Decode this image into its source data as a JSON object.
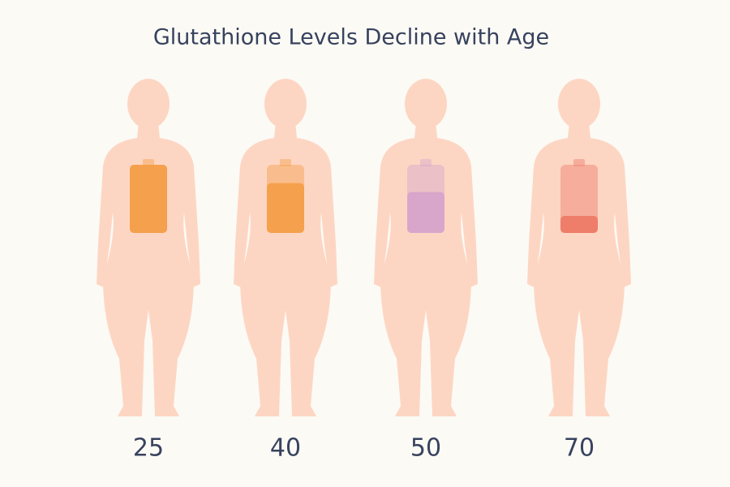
{
  "chart_data": {
    "type": "pictograph",
    "title": "Glutathione Levels Decline with Age",
    "categories": [
      "25",
      "40",
      "50",
      "70"
    ],
    "values": [
      100,
      73,
      60,
      25
    ],
    "colors": [
      "#f5a04c",
      "#f5a04c",
      "#d8a6cb",
      "#ee7d6a"
    ],
    "ylim": [
      0,
      100
    ]
  }
}
